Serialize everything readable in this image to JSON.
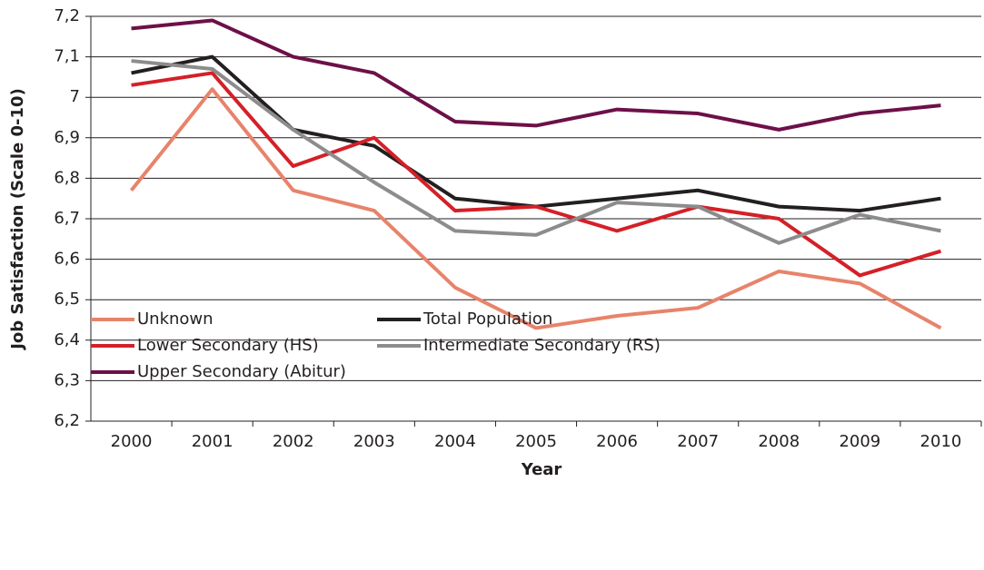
{
  "chart_data": {
    "type": "line",
    "y_label": "Job Satisfaction (Scale 0-10)",
    "x_label": "Year",
    "categories": [
      "2000",
      "2001",
      "2002",
      "2003",
      "2004",
      "2005",
      "2006",
      "2007",
      "2008",
      "2009",
      "2010"
    ],
    "series": [
      {
        "name": "Unknown",
        "color": "#e8836b",
        "values": [
          6.77,
          7.02,
          6.77,
          6.72,
          6.53,
          6.43,
          6.46,
          6.48,
          6.57,
          6.54,
          6.43
        ]
      },
      {
        "name": "Total Population",
        "color": "#231f20",
        "values": [
          7.06,
          7.1,
          6.92,
          6.88,
          6.75,
          6.73,
          6.75,
          6.77,
          6.73,
          6.72,
          6.75
        ]
      },
      {
        "name": "Lower Secondary (HS)",
        "color": "#d42027",
        "values": [
          7.03,
          7.06,
          6.83,
          6.9,
          6.72,
          6.73,
          6.67,
          6.73,
          6.7,
          6.56,
          6.62
        ]
      },
      {
        "name": "Intermediate Secondary (RS)",
        "color": "#8c8c8c",
        "values": [
          7.09,
          7.07,
          6.92,
          6.79,
          6.67,
          6.66,
          6.74,
          6.73,
          6.64,
          6.71,
          6.67
        ]
      },
      {
        "name": "Upper Secondary (Abitur)",
        "color": "#6d1048",
        "values": [
          7.17,
          7.19,
          7.1,
          7.06,
          6.94,
          6.93,
          6.97,
          6.96,
          6.92,
          6.96,
          6.98
        ]
      }
    ],
    "ylim": [
      6.2,
      7.2
    ],
    "yticks": [
      {
        "value": 6.2,
        "label": "6,2"
      },
      {
        "value": 6.3,
        "label": "6,3"
      },
      {
        "value": 6.4,
        "label": "6,4"
      },
      {
        "value": 6.5,
        "label": "6,5"
      },
      {
        "value": 6.6,
        "label": "6,6"
      },
      {
        "value": 6.7,
        "label": "6,7"
      },
      {
        "value": 6.8,
        "label": "6,8"
      },
      {
        "value": 6.9,
        "label": "6,9"
      },
      7,
      {
        "value": 7.1,
        "label": "7,1"
      },
      {
        "value": 7.2,
        "label": "7,2"
      }
    ],
    "grid": true
  }
}
